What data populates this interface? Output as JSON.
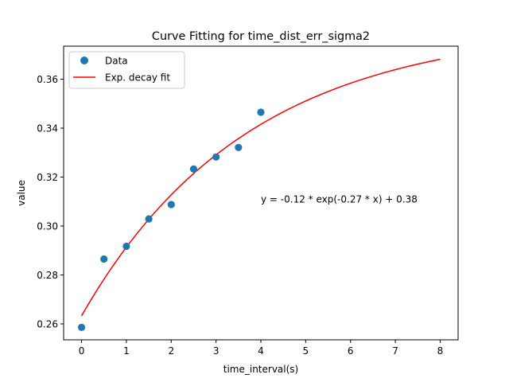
{
  "chart_data": {
    "type": "scatter",
    "title": "Curve Fitting for time_dist_err_sigma2",
    "xlabel": "time_interval(s)",
    "ylabel": "value",
    "xlim": [
      -0.4,
      8.4
    ],
    "ylim": [
      0.2535,
      0.3735
    ],
    "x_ticks": [
      0,
      1,
      2,
      3,
      4,
      5,
      6,
      7,
      8
    ],
    "y_ticks": [
      0.26,
      0.28,
      0.3,
      0.32,
      0.34,
      0.36
    ],
    "x_tick_labels": [
      "0",
      "1",
      "2",
      "3",
      "4",
      "5",
      "6",
      "7",
      "8"
    ],
    "y_tick_labels": [
      "0.26",
      "0.28",
      "0.30",
      "0.32",
      "0.34",
      "0.36"
    ],
    "grid": false,
    "legend": {
      "position": "top-left",
      "entries": [
        {
          "label": "Data",
          "kind": "marker",
          "color": "#1f77b4"
        },
        {
          "label": "Exp. decay fit",
          "kind": "line",
          "color": "#ff0000"
        }
      ]
    },
    "series": [
      {
        "name": "Data",
        "kind": "scatter",
        "color": "#1f77b4",
        "points": [
          {
            "x": 0.0,
            "y": 0.2586
          },
          {
            "x": 0.5,
            "y": 0.2865
          },
          {
            "x": 1.0,
            "y": 0.2917
          },
          {
            "x": 1.5,
            "y": 0.3029
          },
          {
            "x": 2.0,
            "y": 0.3088
          },
          {
            "x": 2.5,
            "y": 0.3233
          },
          {
            "x": 3.0,
            "y": 0.3282
          },
          {
            "x": 3.5,
            "y": 0.3321
          },
          {
            "x": 4.0,
            "y": 0.3465
          }
        ]
      },
      {
        "name": "Exp. decay fit",
        "kind": "line",
        "color": "#ff0000",
        "x_range": [
          0,
          8
        ],
        "model": {
          "a": -0.1185,
          "b": -0.27,
          "c": 0.3818
        }
      }
    ],
    "annotation": {
      "text": "y = -0.12 * exp(-0.27 * x) + 0.38",
      "x": 4.0,
      "y": 0.311
    }
  }
}
